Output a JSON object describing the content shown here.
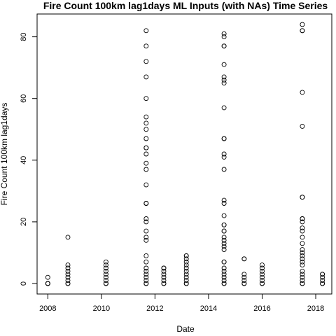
{
  "chart_data": {
    "type": "scatter",
    "title": "Fire Count 100km lag1days ML Inputs (with NAs) Time Series",
    "xlabel": "Date",
    "ylabel": "Fire Count 100km lag1days",
    "xlim": [
      2007.6,
      2018.6
    ],
    "ylim": [
      -3.4,
      87.4
    ],
    "x_ticks": [
      2008,
      2010,
      2012,
      2014,
      2016,
      2018
    ],
    "y_ticks": [
      0,
      20,
      40,
      60,
      80
    ],
    "grid": false,
    "legend": "none",
    "marker": "open-circle",
    "groups": [
      {
        "x": 2008.0,
        "y": [
          0,
          0,
          0,
          2
        ]
      },
      {
        "x": 2008.75,
        "y": [
          0,
          0,
          1,
          2,
          3,
          4,
          5,
          6,
          15
        ]
      },
      {
        "x": 2010.17,
        "y": [
          0,
          0,
          1,
          2,
          3,
          4,
          5,
          6,
          7
        ]
      },
      {
        "x": 2011.67,
        "y": [
          0,
          0,
          1,
          2,
          3,
          4,
          5,
          7,
          9,
          14,
          15,
          17,
          20,
          21,
          26,
          26,
          32,
          37,
          39,
          42,
          44,
          44,
          47,
          50,
          52,
          54,
          60,
          67,
          72,
          77,
          82
        ]
      },
      {
        "x": 2012.33,
        "y": [
          0,
          0,
          1,
          2,
          3,
          4,
          5,
          5
        ]
      },
      {
        "x": 2013.17,
        "y": [
          0,
          0,
          1,
          2,
          3,
          4,
          5,
          6,
          7,
          8,
          9,
          9
        ]
      },
      {
        "x": 2014.58,
        "y": [
          0,
          0,
          1,
          2,
          3,
          4,
          5,
          7,
          7,
          11,
          12,
          13,
          14,
          15,
          17,
          17,
          19,
          19,
          22,
          26,
          27,
          37,
          41,
          42,
          47,
          47,
          57,
          65,
          66,
          67,
          71,
          77,
          77,
          80,
          81
        ]
      },
      {
        "x": 2015.33,
        "y": [
          0,
          0,
          1,
          2,
          3,
          8,
          8
        ]
      },
      {
        "x": 2016.0,
        "y": [
          0,
          0,
          1,
          2,
          3,
          4,
          5,
          6
        ]
      },
      {
        "x": 2017.5,
        "y": [
          0,
          0,
          1,
          2,
          3,
          4,
          6,
          7,
          8,
          9,
          10,
          11,
          13,
          15,
          17,
          18,
          20,
          21,
          21,
          28,
          28,
          51,
          62,
          82,
          82,
          84
        ]
      },
      {
        "x": 2018.25,
        "y": [
          0,
          0,
          1,
          2,
          3,
          3
        ]
      }
    ]
  }
}
